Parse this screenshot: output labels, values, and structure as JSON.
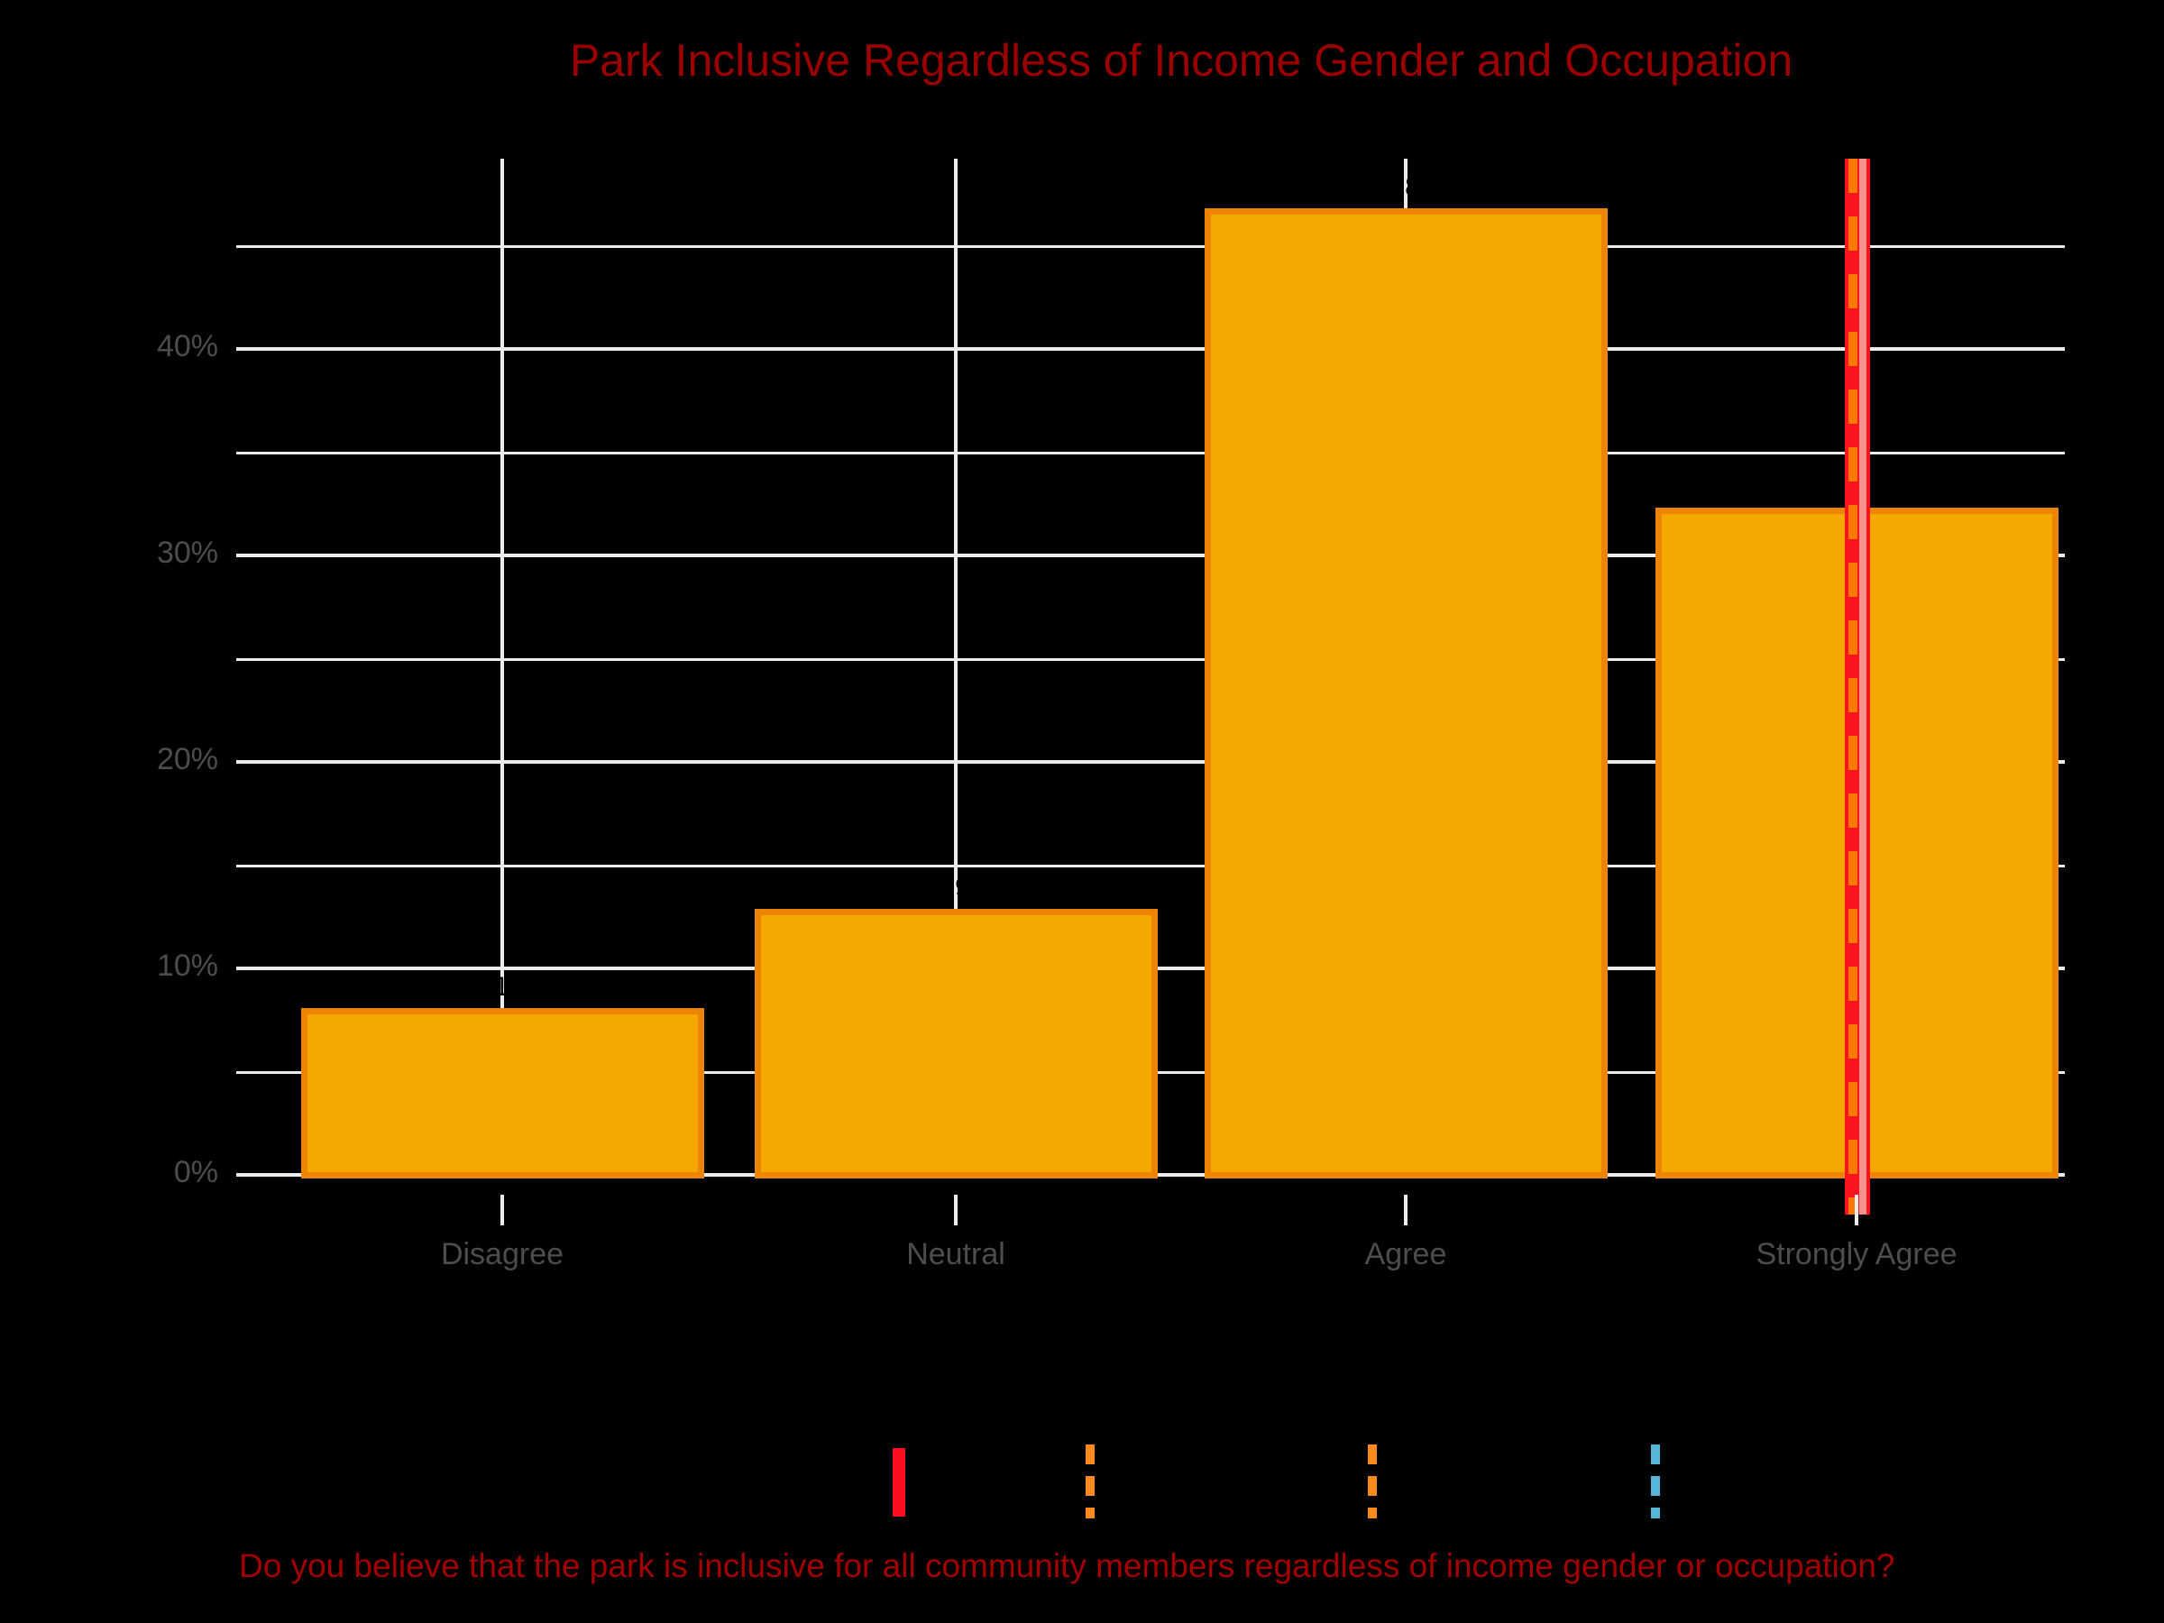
{
  "title": "Park Inclusive Regardless of Income Gender and Occupation",
  "caption": "Do you believe that the park is inclusive for all community members regardless of income gender or occupation?",
  "colors": {
    "background": "#000000",
    "title_text": "#9B0000",
    "caption_text": "#A30000",
    "grid": "#ECECEC",
    "axis_text": "#4D4D4D",
    "bar_fill": "#F5A702",
    "bar_border": "#EE8404",
    "bar_label_text": "#000000",
    "refline_red": "#F9141E",
    "refline_core": "#F4918D",
    "refline_dash_orange": "#FD7A02",
    "legend_red": "#FA0F1E",
    "legend_orange": "#FB8A1E",
    "legend_blue": "#55B7D8"
  },
  "chart_data": {
    "type": "bar",
    "title": "Park Inclusive Regardless of Income Gender and Occupation",
    "categories": [
      "Disagree",
      "Neutral",
      "Agree",
      "Strongly Agree"
    ],
    "values": [
      8.1,
      12.9,
      46.8,
      32.3
    ],
    "bar_labels": [
      "8.1%",
      "12.9%",
      "46.8%",
      "32.3%"
    ],
    "xlabel": "",
    "ylabel": "",
    "y_tick_labels": [
      "0%",
      "10%",
      "20%",
      "30%",
      "40%"
    ],
    "y_tick_values": [
      0,
      10,
      20,
      30,
      40
    ],
    "y_minor_tick_values": [
      5,
      15,
      25,
      35,
      45
    ],
    "ylim": [
      0,
      49.2
    ],
    "grid": true,
    "bar_unit": "percent",
    "reference_line": {
      "at_category": "Strongly Agree",
      "styles": [
        "red-solid-thick",
        "orange-dashed-overlay"
      ]
    },
    "legend_position": "bottom",
    "legend_keys": [
      "red-solid-line",
      "orange-dashed-line",
      "orange-dashed-line",
      "blue-dashed-line"
    ]
  },
  "legend": {
    "items": [
      {
        "symbol": "solid-line",
        "color_key": "legend_red",
        "label": ""
      },
      {
        "symbol": "dashed-line",
        "color_key": "legend_orange",
        "label": ""
      },
      {
        "symbol": "dashed-line",
        "color_key": "legend_orange",
        "label": ""
      },
      {
        "symbol": "dashed-line",
        "color_key": "legend_blue",
        "label": ""
      }
    ]
  }
}
